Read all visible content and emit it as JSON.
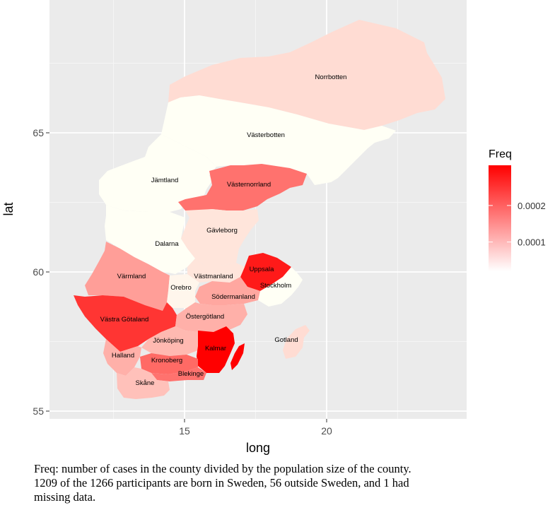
{
  "chart_data": {
    "type": "choropleth-map",
    "xlabel": "long",
    "ylabel": "lat",
    "xlim": [
      10.0,
      25.0
    ],
    "ylim": [
      54.5,
      70.0
    ],
    "x_ticks": [
      15,
      20
    ],
    "y_ticks": [
      55,
      60,
      65
    ],
    "legend": {
      "title": "Freq",
      "ticks": [
        {
          "label": "0.0002",
          "value": 0.0002
        },
        {
          "label": "0.0001",
          "value": 0.0001
        }
      ],
      "range": [
        2e-05,
        0.00031
      ],
      "low_color": "#ffffff",
      "high_color": "#ff0000",
      "placement": "right"
    },
    "counties": [
      {
        "name": "Norrbotten",
        "freq": 6e-05
      },
      {
        "name": "Västerbotten",
        "freq": 2e-05
      },
      {
        "name": "Jämtland",
        "freq": 2e-05
      },
      {
        "name": "Västernorrland",
        "freq": 0.00018
      },
      {
        "name": "Gävleborg",
        "freq": 5e-05
      },
      {
        "name": "Dalarna",
        "freq": 2e-05
      },
      {
        "name": "Värmland",
        "freq": 0.00013
      },
      {
        "name": "Uppsala",
        "freq": 0.00028
      },
      {
        "name": "Västmanland",
        "freq": 5e-05
      },
      {
        "name": "Orebro",
        "freq": 3e-05
      },
      {
        "name": "Stockholm",
        "freq": 2e-05
      },
      {
        "name": "Södermanland",
        "freq": 0.00012
      },
      {
        "name": "Västra Götaland",
        "freq": 0.00025
      },
      {
        "name": "Östergötland",
        "freq": 0.00011
      },
      {
        "name": "Gotland",
        "freq": 6e-05
      },
      {
        "name": "Jönköping",
        "freq": 0.0001
      },
      {
        "name": "Kalmar",
        "freq": 0.00031
      },
      {
        "name": "Halland",
        "freq": 0.00011
      },
      {
        "name": "Kronoberg",
        "freq": 0.00019
      },
      {
        "name": "Blekinge",
        "freq": 0.00018
      },
      {
        "name": "Skåne",
        "freq": 9e-05
      }
    ]
  },
  "caption": {
    "line1": "Freq: number of cases in the county divided by the population size of the county.",
    "line2": "1209 of the 1266 participants are born in Sweden, 56 outside Sweden, and 1 had",
    "line3": "missing data."
  }
}
